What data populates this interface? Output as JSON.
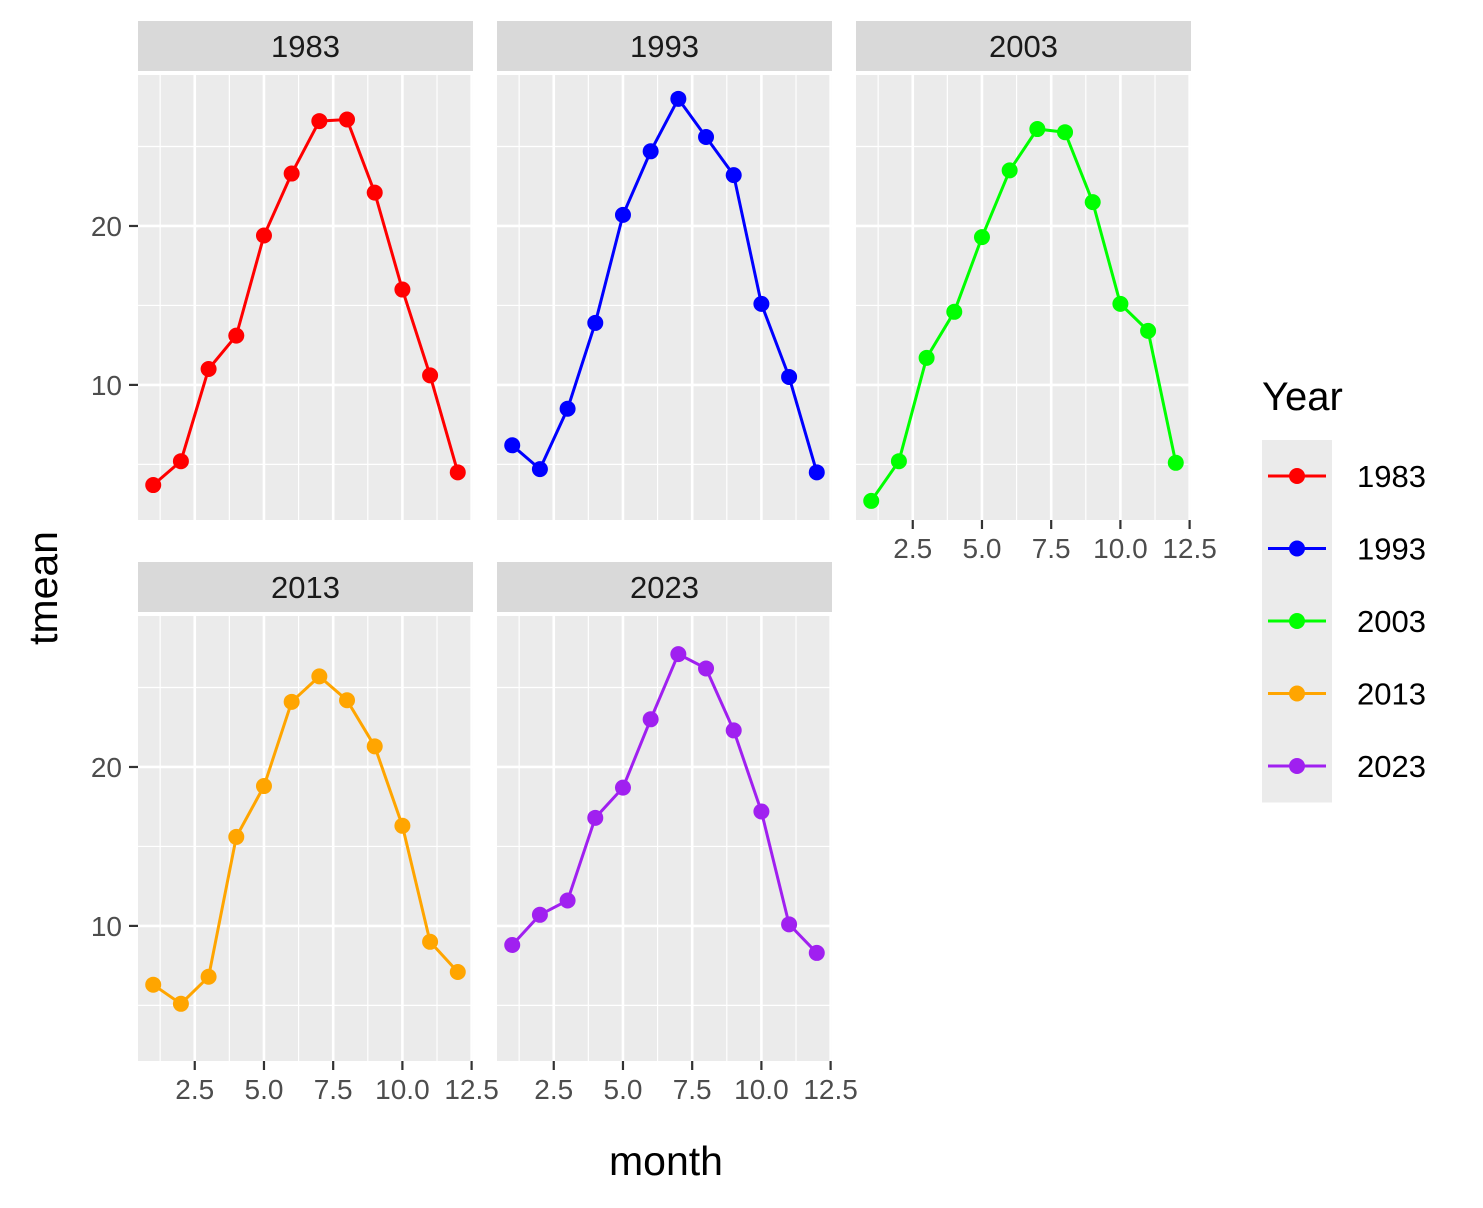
{
  "chart_data": {
    "type": "line",
    "facet_by": "Year",
    "xlabel": "month",
    "ylabel": "tmean",
    "xlim": [
      0.45,
      12.55
    ],
    "ylim": [
      1.5,
      29.5
    ],
    "x_ticks": [
      2.5,
      5.0,
      7.5,
      10.0,
      12.5
    ],
    "x_tick_labels": [
      "2.5",
      "5.0",
      "7.5",
      "10.0",
      "12.5"
    ],
    "y_ticks": [
      10,
      20
    ],
    "y_tick_labels": [
      "10",
      "20"
    ],
    "grid": true,
    "legend": {
      "title": "Year",
      "position": "right"
    },
    "x": [
      1,
      2,
      3,
      4,
      5,
      6,
      7,
      8,
      9,
      10,
      11,
      12
    ],
    "series": [
      {
        "name": "1983",
        "color": "#ff0000",
        "values": [
          3.7,
          5.2,
          11.0,
          13.1,
          19.4,
          23.3,
          26.6,
          26.7,
          22.1,
          16.0,
          10.6,
          4.5
        ]
      },
      {
        "name": "1993",
        "color": "#0000ff",
        "values": [
          6.2,
          4.7,
          8.5,
          13.9,
          20.7,
          24.7,
          28.0,
          25.6,
          23.2,
          15.1,
          10.5,
          4.5
        ]
      },
      {
        "name": "2003",
        "color": "#00ff00",
        "values": [
          2.7,
          5.2,
          11.7,
          14.6,
          19.3,
          23.5,
          26.1,
          25.9,
          21.5,
          15.1,
          13.4,
          5.1
        ]
      },
      {
        "name": "2013",
        "color": "#ffa500",
        "values": [
          6.3,
          5.1,
          6.8,
          15.6,
          18.8,
          24.1,
          25.7,
          24.2,
          21.3,
          16.3,
          9.0,
          7.1
        ]
      },
      {
        "name": "2023",
        "color": "#a020f0",
        "values": [
          8.8,
          10.7,
          11.6,
          16.8,
          18.7,
          23.0,
          27.1,
          26.2,
          22.3,
          17.2,
          10.1,
          8.3
        ]
      }
    ]
  }
}
